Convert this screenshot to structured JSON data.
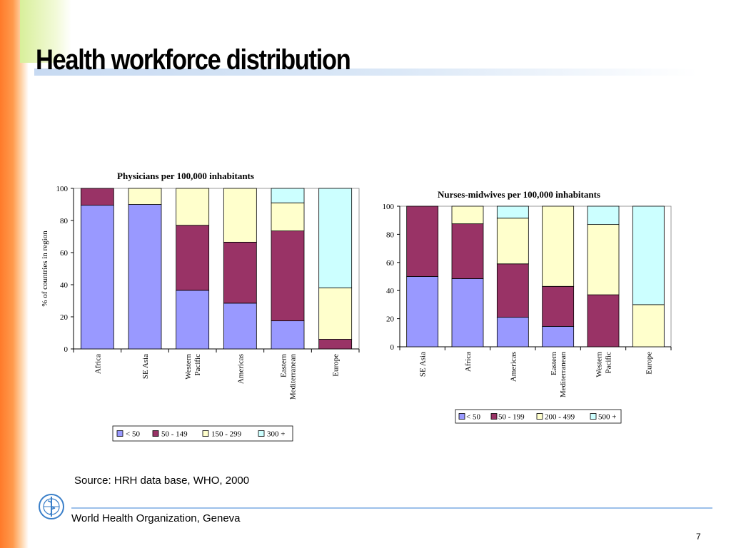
{
  "slide": {
    "title": "Health workforce distribution",
    "source": "Source: HRH data base, WHO, 2000",
    "org": "World Health Organization, Geneva",
    "page": "7",
    "logo_icon": "who-emblem-icon"
  },
  "colors": {
    "cat1": "#9999ff",
    "cat2": "#993366",
    "cat3": "#ffffcc",
    "cat4": "#ccffff"
  },
  "chart_data": [
    {
      "type": "bar",
      "stacked": true,
      "title": "Physicians per 100,000 inhabitants",
      "ylabel": "% of countries in region",
      "xlabel": "",
      "ylim": [
        0,
        100
      ],
      "yticks": [
        "0",
        "20",
        "40",
        "60",
        "80",
        "100"
      ],
      "categories": [
        [
          "Africa"
        ],
        [
          "SE Asia"
        ],
        [
          "Western",
          "Pacific"
        ],
        [
          "Americas"
        ],
        [
          "Eastern",
          "Mediterranean"
        ],
        [
          "Europe"
        ]
      ],
      "legend_position": "bottom",
      "series": [
        {
          "name": "< 50",
          "values": [
            89.5,
            90,
            36.5,
            28.5,
            17.5,
            0
          ]
        },
        {
          "name": "50 - 149",
          "values": [
            10.5,
            0,
            40.5,
            38,
            56,
            6
          ]
        },
        {
          "name": "150 - 299",
          "values": [
            0,
            10,
            23,
            33.5,
            17.5,
            32
          ]
        },
        {
          "name": "300 +",
          "values": [
            0,
            0,
            0,
            0,
            9,
            62
          ]
        }
      ]
    },
    {
      "type": "bar",
      "stacked": true,
      "title": "Nurses-midwives per 100,000 inhabitants",
      "ylabel": "",
      "xlabel": "",
      "ylim": [
        0,
        100
      ],
      "yticks": [
        "0",
        "20",
        "40",
        "60",
        "80",
        "100"
      ],
      "categories": [
        [
          "SE Asia"
        ],
        [
          "Africa"
        ],
        [
          "Americas"
        ],
        [
          "Eastern",
          "Mediterranean"
        ],
        [
          "Western",
          "Pacific"
        ],
        [
          "Europe"
        ]
      ],
      "legend_position": "bottom",
      "series": [
        {
          "name": "< 50",
          "values": [
            50,
            48.5,
            21,
            14.5,
            0,
            0
          ]
        },
        {
          "name": "50 - 199",
          "values": [
            50,
            39,
            38,
            28.5,
            37,
            0
          ]
        },
        {
          "name": "200 - 499",
          "values": [
            0,
            12.5,
            32.5,
            57,
            50,
            30
          ]
        },
        {
          "name": "500 +",
          "values": [
            0,
            0,
            8.5,
            0,
            13,
            70
          ]
        }
      ]
    }
  ]
}
